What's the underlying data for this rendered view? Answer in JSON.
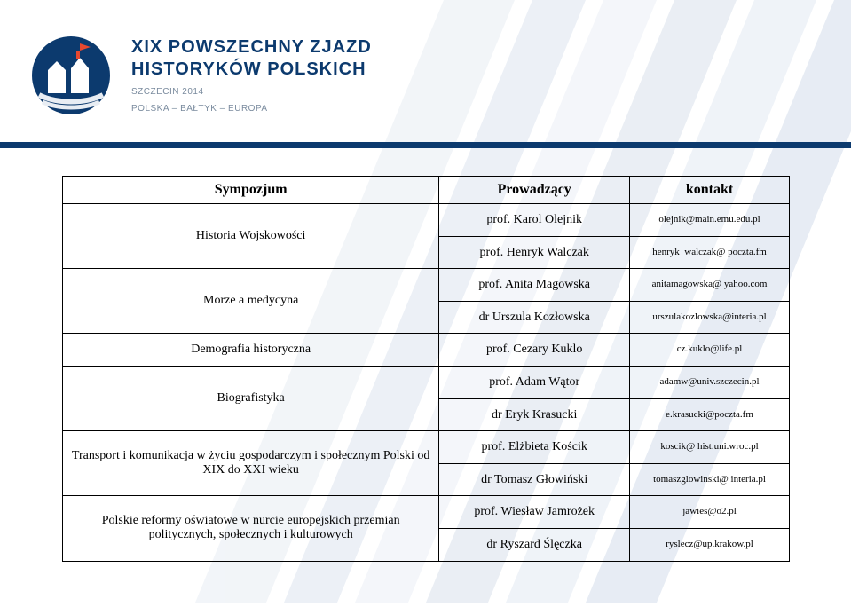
{
  "header": {
    "line1": "XIX POWSZECHNY ZJAZD",
    "line2": "HISTORYKÓW POLSKICH",
    "sub1": "SZCZECIN 2014",
    "sub2": "POLSKA – BAŁTYK – EUROPA"
  },
  "table": {
    "head": {
      "c0": "Sympozjum",
      "c1": "Prowadzący",
      "c2": "kontakt"
    },
    "rows": [
      {
        "topic": "Historia Wojskowości",
        "leads": [
          "prof. Karol Olejnik",
          "prof. Henryk Walczak"
        ],
        "contacts": [
          "olejnik@main.emu.edu.pl",
          "henryk_walczak@ poczta.fm"
        ]
      },
      {
        "topic": "Morze a medycyna",
        "leads": [
          "prof. Anita Magowska",
          "dr Urszula Kozłowska"
        ],
        "contacts": [
          "anitamagowska@ yahoo.com",
          "urszulakozlowska@interia.pl"
        ]
      },
      {
        "topic": "Demografia historyczna",
        "leads": [
          "prof. Cezary Kuklo"
        ],
        "contacts": [
          "cz.kuklo@life.pl"
        ]
      },
      {
        "topic": "Biografistyka",
        "leads": [
          "prof. Adam Wątor",
          "dr Eryk Krasucki"
        ],
        "contacts": [
          "adamw@univ.szczecin.pl",
          "e.krasucki@poczta.fm"
        ]
      },
      {
        "topic": "Transport i komunikacja w życiu gospodarczym i społecznym Polski od XIX do XXI wieku",
        "leads": [
          "prof. Elżbieta Kościk",
          "dr Tomasz Głowiński"
        ],
        "contacts": [
          "koscik@ hist.uni.wroc.pl",
          "tomaszglowinski@ interia.pl"
        ]
      },
      {
        "topic": "Polskie reformy oświatowe w nurcie europejskich przemian politycznych, społecznych i kulturowych",
        "leads": [
          "prof. Wiesław Jamrożek",
          "dr Ryszard Ślęczka"
        ],
        "contacts": [
          "jawies@o2.pl",
          "ryslecz@up.krakow.pl"
        ]
      }
    ]
  },
  "colors": {
    "navy": "#0c3a6e",
    "bg_stripe": "#e8edf3",
    "bg_stripe2": "#f3f6fa"
  }
}
